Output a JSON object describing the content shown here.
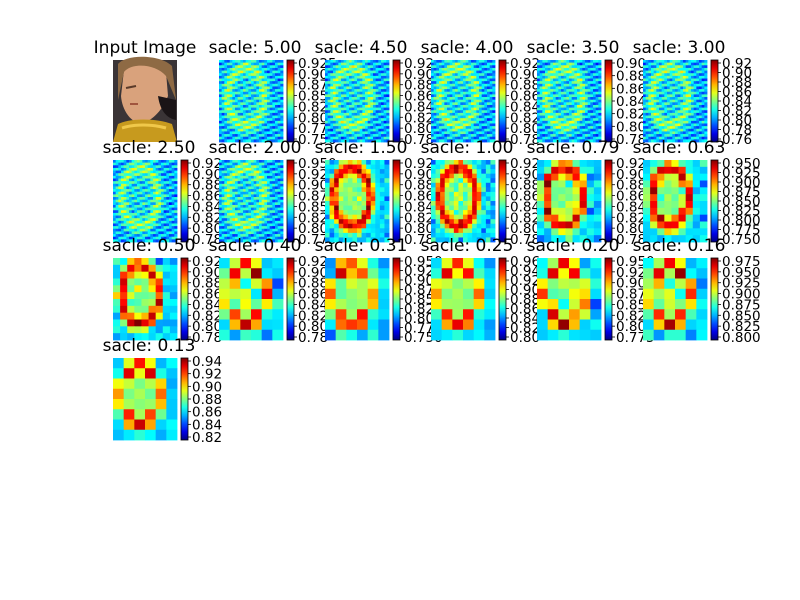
{
  "figure": {
    "input_title": "Input Image",
    "colormap": "jet"
  },
  "chart_data": [
    {
      "type": "heatmap",
      "title": "sacle: 5.00",
      "colorbar_ticks": [
        "0.925",
        "0.900",
        "0.875",
        "0.850",
        "0.825",
        "0.800",
        "0.775",
        "0.750"
      ],
      "texture": "fine"
    },
    {
      "type": "heatmap",
      "title": "sacle: 4.50",
      "colorbar_ticks": [
        "0.92",
        "0.90",
        "0.88",
        "0.86",
        "0.84",
        "0.82",
        "0.80",
        "0.78"
      ],
      "texture": "fine"
    },
    {
      "type": "heatmap",
      "title": "sacle: 4.00",
      "colorbar_ticks": [
        "0.92",
        "0.90",
        "0.88",
        "0.86",
        "0.84",
        "0.82",
        "0.80",
        "0.78"
      ],
      "texture": "fine"
    },
    {
      "type": "heatmap",
      "title": "sacle: 3.50",
      "colorbar_ticks": [
        "0.90",
        "0.88",
        "0.86",
        "0.84",
        "0.82",
        "0.80",
        "0.78"
      ],
      "texture": "fine"
    },
    {
      "type": "heatmap",
      "title": "sacle: 3.00",
      "colorbar_ticks": [
        "0.92",
        "0.90",
        "0.88",
        "0.86",
        "0.84",
        "0.82",
        "0.80",
        "0.78",
        "0.76"
      ],
      "texture": "fine"
    },
    {
      "type": "heatmap",
      "title": "sacle: 2.50",
      "colorbar_ticks": [
        "0.92",
        "0.90",
        "0.88",
        "0.86",
        "0.84",
        "0.82",
        "0.80",
        "0.78"
      ],
      "texture": "fine"
    },
    {
      "type": "heatmap",
      "title": "sacle: 2.00",
      "colorbar_ticks": [
        "0.950",
        "0.925",
        "0.900",
        "0.875",
        "0.850",
        "0.825",
        "0.800",
        "0.775"
      ],
      "texture": "fine"
    },
    {
      "type": "heatmap",
      "title": "sacle: 1.50",
      "colorbar_ticks": [
        "0.92",
        "0.90",
        "0.88",
        "0.86",
        "0.84",
        "0.82",
        "0.80",
        "0.78"
      ],
      "texture": "medium"
    },
    {
      "type": "heatmap",
      "title": "sacle: 1.00",
      "colorbar_ticks": [
        "0.92",
        "0.90",
        "0.88",
        "0.86",
        "0.84",
        "0.82",
        "0.80",
        "0.78"
      ],
      "texture": "medium"
    },
    {
      "type": "heatmap",
      "title": "sacle: 0.79",
      "colorbar_ticks": [
        "0.92",
        "0.90",
        "0.88",
        "0.86",
        "0.84",
        "0.82",
        "0.80",
        "0.78"
      ],
      "texture": "coarse"
    },
    {
      "type": "heatmap",
      "title": "sacle: 0.63",
      "colorbar_ticks": [
        "0.950",
        "0.925",
        "0.900",
        "0.875",
        "0.850",
        "0.825",
        "0.800",
        "0.775",
        "0.750"
      ],
      "texture": "coarse"
    },
    {
      "type": "heatmap",
      "title": "sacle: 0.50",
      "colorbar_ticks": [
        "0.92",
        "0.90",
        "0.88",
        "0.86",
        "0.84",
        "0.82",
        "0.80",
        "0.78"
      ],
      "texture": "coarse"
    },
    {
      "type": "heatmap",
      "title": "sacle: 0.40",
      "colorbar_ticks": [
        "0.92",
        "0.90",
        "0.88",
        "0.86",
        "0.84",
        "0.82",
        "0.80",
        "0.78"
      ],
      "texture": "blocky"
    },
    {
      "type": "heatmap",
      "title": "sacle: 0.31",
      "colorbar_ticks": [
        "0.950",
        "0.925",
        "0.900",
        "0.875",
        "0.850",
        "0.825",
        "0.800",
        "0.775",
        "0.750"
      ],
      "texture": "blocky"
    },
    {
      "type": "heatmap",
      "title": "sacle: 0.25",
      "colorbar_ticks": [
        "0.96",
        "0.94",
        "0.92",
        "0.90",
        "0.88",
        "0.86",
        "0.84",
        "0.82",
        "0.80"
      ],
      "texture": "blocky"
    },
    {
      "type": "heatmap",
      "title": "sacle: 0.20",
      "colorbar_ticks": [
        "0.950",
        "0.925",
        "0.900",
        "0.875",
        "0.850",
        "0.825",
        "0.800",
        "0.775"
      ],
      "texture": "blocky"
    },
    {
      "type": "heatmap",
      "title": "sacle: 0.16",
      "colorbar_ticks": [
        "0.975",
        "0.950",
        "0.925",
        "0.900",
        "0.875",
        "0.850",
        "0.825",
        "0.800"
      ],
      "texture": "blocky"
    },
    {
      "type": "heatmap",
      "title": "sacle: 0.13",
      "colorbar_ticks": [
        "0.94",
        "0.92",
        "0.90",
        "0.88",
        "0.86",
        "0.84",
        "0.82"
      ],
      "texture": "blocky"
    }
  ]
}
